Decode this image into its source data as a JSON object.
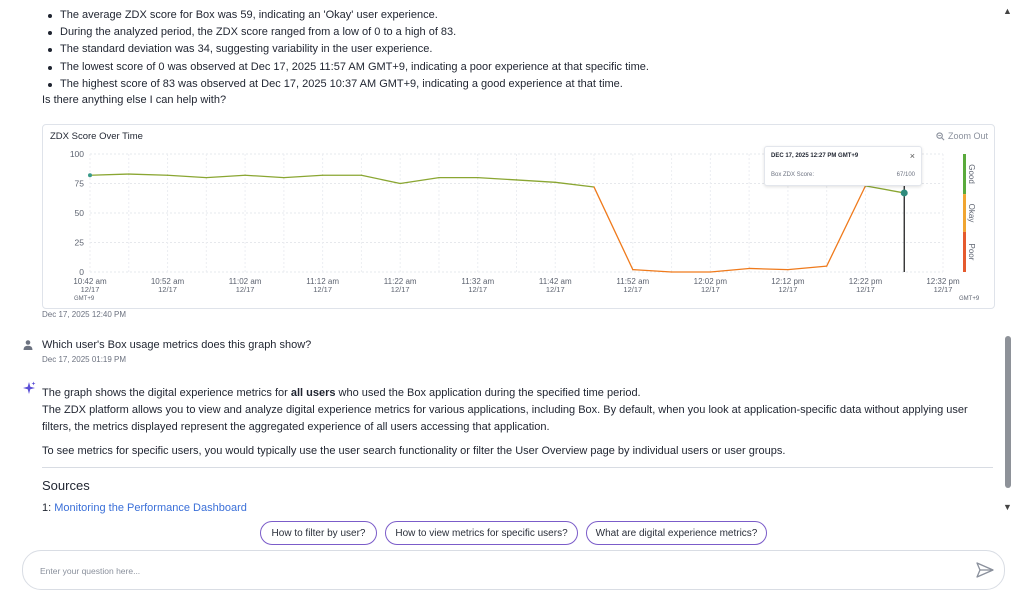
{
  "message": {
    "bullets": [
      "The average ZDX score for Box was 59, indicating an 'Okay' user experience.",
      "During the analyzed period, the ZDX score ranged from a low of 0 to a high of 83.",
      "The standard deviation was 34, suggesting variability in the user experience.",
      "The lowest score of 0 was observed at Dec 17, 2025 11:57 AM GMT+9, indicating a poor experience at that specific time.",
      "The highest score of 83 was observed at Dec 17, 2025 10:37 AM GMT+9, indicating a good experience at that time."
    ],
    "followup": "Is there anything else I can help with?",
    "timestamp": "Dec 17, 2025 12:40 PM"
  },
  "chart": {
    "title": "ZDX Score Over Time",
    "zoom_out": "Zoom Out",
    "tooltip": {
      "date": "DEC 17, 2025 12:27 PM GMT+9",
      "label": "Box ZDX Score:",
      "value": "67/100",
      "close": "×"
    },
    "bands": [
      {
        "label": "Good",
        "color": "#5aaa3c"
      },
      {
        "label": "Okay",
        "color": "#f0a531"
      },
      {
        "label": "Poor",
        "color": "#e55a2e"
      }
    ],
    "tz_label": "GMT+9"
  },
  "chart_data": {
    "type": "line",
    "title": "ZDX Score Over Time",
    "ylim": [
      0,
      100
    ],
    "yticks": [
      0,
      25,
      50,
      75,
      100
    ],
    "x_tick_labels": [
      [
        "10:42 am",
        "12/17"
      ],
      [
        "10:52 am",
        "12/17"
      ],
      [
        "11:02 am",
        "12/17"
      ],
      [
        "11:12 am",
        "12/17"
      ],
      [
        "11:22 am",
        "12/17"
      ],
      [
        "11:32 am",
        "12/17"
      ],
      [
        "11:42 am",
        "12/17"
      ],
      [
        "11:52 am",
        "12/17"
      ],
      [
        "12:02 pm",
        "12/17"
      ],
      [
        "12:12 pm",
        "12/17"
      ],
      [
        "12:22 pm",
        "12/17"
      ],
      [
        "12:32 pm",
        "12/17"
      ]
    ],
    "grid": true,
    "series": [
      {
        "x": [
          "10:42",
          "10:47",
          "10:52",
          "10:57",
          "11:02",
          "11:07",
          "11:12",
          "11:17",
          "11:22",
          "11:27",
          "11:32",
          "11:37",
          "11:42",
          "11:47",
          "11:52",
          "11:57",
          "12:02",
          "12:07",
          "12:12",
          "12:17",
          "12:22",
          "12:27"
        ],
        "y": [
          82,
          83,
          82,
          80,
          82,
          80,
          82,
          82,
          75,
          80,
          80,
          78,
          76,
          72,
          2,
          0,
          0,
          3,
          2,
          5,
          73,
          67
        ]
      }
    ]
  },
  "question": {
    "text": "Which user's Box usage metrics does this graph show?",
    "timestamp": "Dec 17, 2025 01:19 PM"
  },
  "answer": {
    "p1_pre": "The graph shows the digital experience metrics for ",
    "p1_bold": "all users",
    "p1_post": " who used the Box application during the specified time period.",
    "p2": "The ZDX platform allows you to view and analyze digital experience metrics for various applications, including Box. By default, when you look at application-specific data without applying user filters, the metrics displayed represent the aggregated experience of all users accessing that application.",
    "p3": "To see metrics for specific users, you would typically use the user search functionality or filter the User Overview page by individual users or user groups."
  },
  "sources": {
    "heading": "Sources",
    "items": [
      {
        "num": "1:",
        "title": "Monitoring the Performance Dashboard"
      }
    ]
  },
  "suggestions": [
    "How to filter by user?",
    "How to view metrics for specific users?",
    "What are digital experience metrics?"
  ],
  "input": {
    "placeholder": "Enter your question here...",
    "value": ""
  }
}
